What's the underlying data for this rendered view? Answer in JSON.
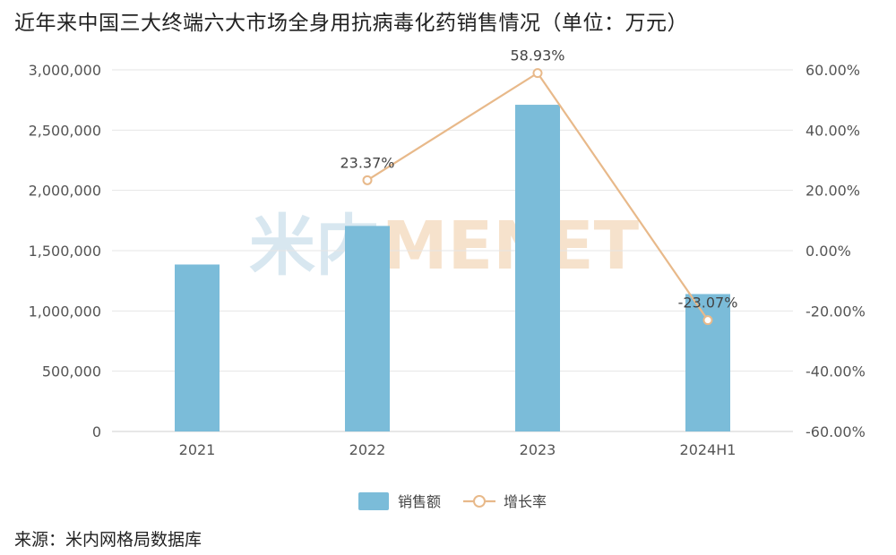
{
  "title": "近年来中国三大终端六大市场全身用抗病毒化药销售情况（单位：万元）",
  "source": "来源：米内网格局数据库",
  "watermark": "米内MENET",
  "colors": {
    "bar": "#7bbcd9",
    "line": "#e8b98a",
    "grid": "#e6e6e6",
    "watermark_blue": "#d8e7f0",
    "watermark_orange": "#f6e2cc"
  },
  "chart_data": {
    "type": "bar",
    "categories": [
      "2021",
      "2022",
      "2023",
      "2024H1"
    ],
    "series": [
      {
        "name": "销售额",
        "type": "bar",
        "axis": "left",
        "values": [
          1385000,
          1705000,
          2710000,
          1140000
        ]
      },
      {
        "name": "增长率",
        "type": "line",
        "axis": "right",
        "values": [
          null,
          23.37,
          58.93,
          -23.07
        ],
        "labels": [
          "",
          "23.37%",
          "58.93%",
          "-23.07%"
        ]
      }
    ],
    "y_left": {
      "ylim": [
        0,
        3000000
      ],
      "ticks": [
        0,
        500000,
        1000000,
        1500000,
        2000000,
        2500000,
        3000000
      ],
      "tick_labels": [
        "0",
        "500,000",
        "1,000,000",
        "1,500,000",
        "2,000,000",
        "2,500,000",
        "3,000,000"
      ]
    },
    "y_right": {
      "ylim": [
        -60,
        60
      ],
      "ticks": [
        -60,
        -40,
        -20,
        0,
        20,
        40,
        60
      ],
      "tick_labels": [
        "-60.00%",
        "-40.00%",
        "-20.00%",
        "0.00%",
        "20.00%",
        "40.00%",
        "60.00%"
      ]
    },
    "grid": true,
    "legend": {
      "position": "bottom",
      "items": [
        "销售额",
        "增长率"
      ]
    }
  }
}
